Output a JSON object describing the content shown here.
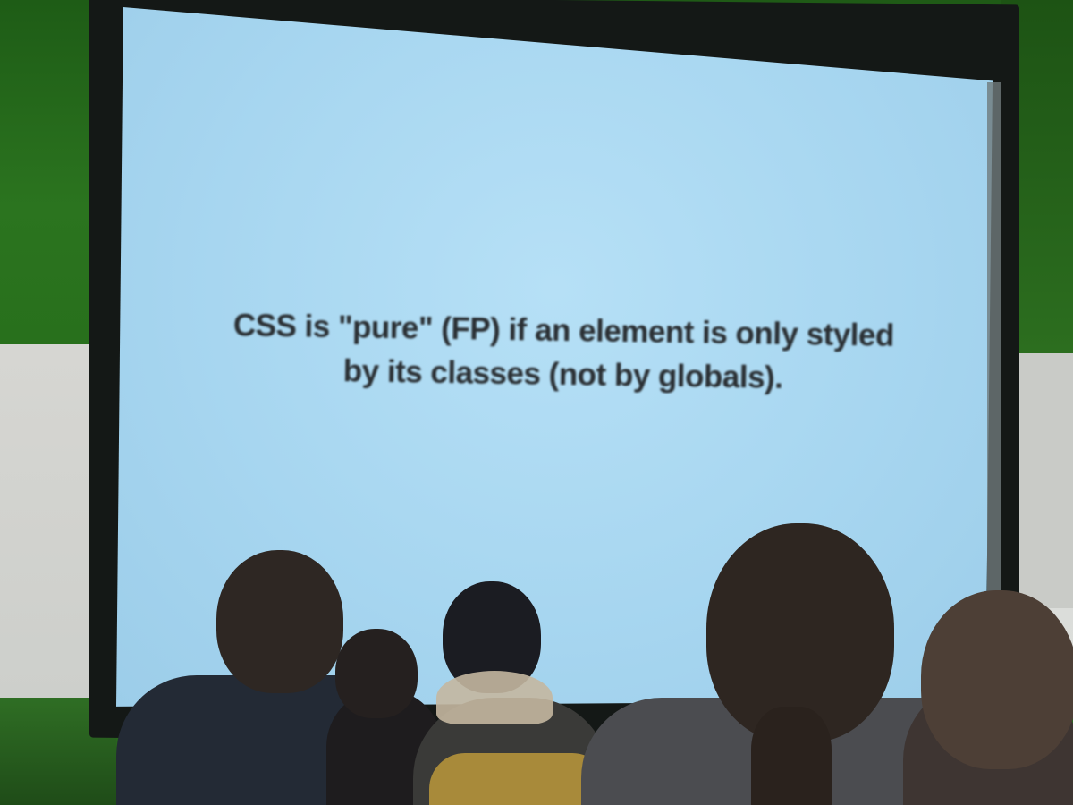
{
  "slide": {
    "line1": "CSS is \"pure\" (FP) if an element is only styled",
    "line2": "by its classes (not by globals)."
  },
  "colors": {
    "screen": "#a7d6f0",
    "wall_green": "#2b741f",
    "wall_grey": "#d6d6d2",
    "housing": "#141816",
    "text": "#2a2f33"
  }
}
